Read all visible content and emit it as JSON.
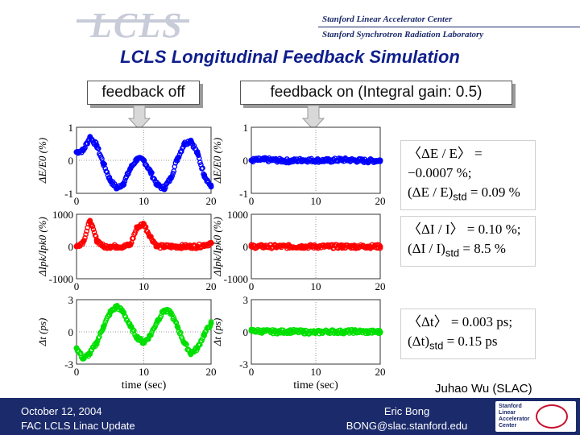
{
  "header": {
    "logo_text": "LCLS",
    "line1": "Stanford Linear Accelerator Center",
    "line2": "Stanford Synchrotron Radiation Laboratory"
  },
  "title": "LCLS Longitudinal Feedback Simulation",
  "labels": {
    "feedback_off": "feedback off",
    "feedback_on": "feedback on (Integral gain: 0.5)"
  },
  "chart_data": [
    {
      "type": "scatter",
      "panel": "energy-feedback-off",
      "xlabel": "",
      "ylabel": "ΔE/E0 (%)",
      "xlim": [
        0,
        20
      ],
      "ylim": [
        -1,
        1
      ],
      "x_ticks": [
        "0",
        "10",
        "20"
      ],
      "y_ticks": [
        "1",
        "0",
        "-1"
      ],
      "color": "#0000ff",
      "x": [
        0,
        1,
        2,
        3,
        4,
        5,
        6,
        7,
        8,
        9,
        10,
        11,
        12,
        13,
        14,
        15,
        16,
        17,
        18,
        19,
        20
      ],
      "y": [
        0.25,
        0.3,
        0.7,
        0.45,
        -0.1,
        -0.6,
        -0.85,
        -0.7,
        -0.25,
        0.05,
        0.0,
        -0.35,
        -0.75,
        -0.85,
        -0.55,
        0.05,
        0.5,
        0.6,
        0.2,
        -0.45,
        -0.8
      ]
    },
    {
      "type": "scatter",
      "panel": "energy-feedback-on",
      "xlabel": "",
      "ylabel": "ΔE/E0 (%)",
      "xlim": [
        0,
        20
      ],
      "ylim": [
        -1,
        1
      ],
      "x_ticks": [
        "0",
        "10",
        "20"
      ],
      "y_ticks": [
        "1",
        "0",
        "-1"
      ],
      "color": "#0000ff",
      "x": [
        0,
        2,
        4,
        6,
        8,
        10,
        12,
        14,
        16,
        18,
        20
      ],
      "y": [
        0.0,
        0.02,
        0.0,
        -0.02,
        0.01,
        0.0,
        -0.01,
        0.02,
        0.0,
        -0.02,
        0.0
      ]
    },
    {
      "type": "scatter",
      "panel": "current-feedback-off",
      "xlabel": "",
      "ylabel": "ΔIpk/Ipk0 (%)",
      "xlim": [
        0,
        20
      ],
      "ylim": [
        -1000,
        1000
      ],
      "x_ticks": [
        "0",
        "10",
        "20"
      ],
      "y_ticks": [
        "1000",
        "0",
        "-1000"
      ],
      "color": "#ff0000",
      "x": [
        0,
        1,
        2,
        3,
        4,
        5,
        6,
        7,
        8,
        9,
        10,
        11,
        12,
        13,
        14,
        15,
        16,
        17,
        18,
        19,
        20
      ],
      "y": [
        0,
        150,
        800,
        200,
        0,
        0,
        0,
        0,
        50,
        600,
        700,
        300,
        0,
        0,
        0,
        0,
        0,
        0,
        0,
        50,
        100
      ]
    },
    {
      "type": "scatter",
      "panel": "current-feedback-on",
      "xlabel": "",
      "ylabel": "ΔIpk/Ipk0 (%)",
      "xlim": [
        0,
        20
      ],
      "ylim": [
        -1000,
        1000
      ],
      "x_ticks": [
        "0",
        "10",
        "20"
      ],
      "y_ticks": [
        "1000",
        "0",
        "-1000"
      ],
      "color": "#ff0000",
      "x": [
        0,
        2,
        4,
        6,
        8,
        10,
        12,
        14,
        16,
        18,
        20
      ],
      "y": [
        0,
        0,
        0,
        0,
        0,
        0,
        0,
        0,
        0,
        0,
        0
      ]
    },
    {
      "type": "scatter",
      "panel": "time-feedback-off",
      "xlabel": "time (sec)",
      "ylabel": "Δt (ps)",
      "xlim": [
        0,
        20
      ],
      "ylim": [
        -3,
        3
      ],
      "x_ticks": [
        "0",
        "10",
        "20"
      ],
      "y_ticks": [
        "3",
        "0",
        "-3"
      ],
      "color": "#00e000",
      "x": [
        0,
        1,
        2,
        3,
        4,
        5,
        6,
        7,
        8,
        9,
        10,
        11,
        12,
        13,
        14,
        15,
        16,
        17,
        18,
        19,
        20
      ],
      "y": [
        -1.5,
        -2.5,
        -2.0,
        -1.0,
        0.5,
        1.8,
        2.4,
        1.8,
        0.5,
        -0.5,
        -1.0,
        -0.3,
        1.0,
        2.0,
        1.8,
        0.5,
        -1.0,
        -2.0,
        -1.5,
        -0.2,
        0.8
      ]
    },
    {
      "type": "scatter",
      "panel": "time-feedback-on",
      "xlabel": "time (sec)",
      "ylabel": "Δt (ps)",
      "xlim": [
        0,
        20
      ],
      "ylim": [
        -3,
        3
      ],
      "x_ticks": [
        "0",
        "10",
        "20"
      ],
      "y_ticks": [
        "3",
        "0",
        "-3"
      ],
      "color": "#00e000",
      "x": [
        0,
        2,
        4,
        6,
        8,
        10,
        12,
        14,
        16,
        18,
        20
      ],
      "y": [
        0.1,
        0.05,
        0.0,
        0.05,
        0.0,
        -0.05,
        0.05,
        0.0,
        0.05,
        0.0,
        0.0
      ]
    }
  ],
  "equations": {
    "energy_mean": "〈ΔE / E〉 = −0.0007 %;",
    "energy_std_lhs": "(ΔE / E)",
    "energy_std_sub": "std",
    "energy_std_rhs": "= 0.09 %",
    "current_mean": "〈ΔI / I〉 = 0.10 %;",
    "current_std_lhs": "(ΔI / I)",
    "current_std_sub": "std",
    "current_std_rhs": "= 8.5 %",
    "time_mean": "〈Δt〉 = 0.003 ps;",
    "time_std_lhs": "(Δt)",
    "time_std_sub": "std",
    "time_std_rhs": "= 0.15 ps"
  },
  "author": "Juhao Wu (SLAC)",
  "footer": {
    "date": "October 12, 2004",
    "event": "FAC LCLS Linac Update",
    "name": "Eric Bong",
    "email": "BONG@slac.stanford.edu",
    "logo_lines": [
      "Stanford",
      "Linear",
      "Accelerator",
      "Center"
    ]
  },
  "colors": {
    "navy": "#1b2a6b",
    "title": "#0f1f8c",
    "blue": "#0000ff",
    "red": "#ff0000",
    "green": "#00e000"
  }
}
